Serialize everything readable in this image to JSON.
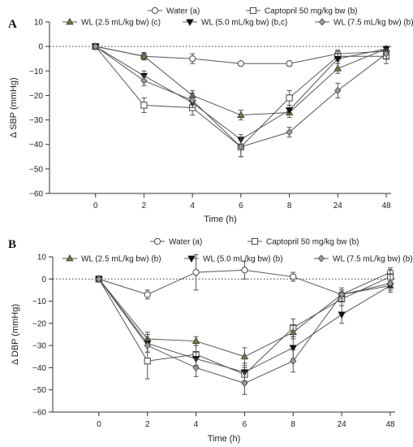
{
  "chart_data": [
    {
      "type": "line",
      "panel": "A",
      "ylabel": "Δ SBP (mmHg)",
      "xlabel": "Time (h)",
      "x": [
        "0",
        "2",
        "4",
        "6",
        "8",
        "24",
        "48"
      ],
      "ylim": [
        -60,
        10
      ],
      "yticks": [
        10,
        0,
        -10,
        -20,
        -30,
        -40,
        -50,
        -60
      ],
      "zero_line": "dotted",
      "legend_placement": "top",
      "series": [
        {
          "name": "Water (a)",
          "marker": "circle-open",
          "marker_color": "#ffffff",
          "values": [
            0,
            -4,
            -5,
            -7,
            -7,
            -3,
            -2
          ],
          "err": [
            0,
            1.5,
            2,
            0.5,
            1,
            1.5,
            1
          ]
        },
        {
          "name": "Captopril 50 mg/kg bw (b)",
          "marker": "square-open",
          "marker_color": "#ffffff",
          "values": [
            0,
            -24,
            -25,
            -41,
            -21,
            -4,
            -4
          ],
          "err": [
            0,
            3,
            3,
            4,
            3,
            2,
            3
          ]
        },
        {
          "name": "WL (2.5 mL/kg bw) (c)",
          "marker": "triangle-up",
          "marker_color": "#7a7a3a",
          "values": [
            0,
            -4,
            -20,
            -28,
            -27,
            -9,
            -1
          ],
          "err": [
            0,
            1.5,
            2,
            2,
            2,
            2,
            1
          ]
        },
        {
          "name": "WL (5.0 mL/kg bw) (b,c)",
          "marker": "triangle-down",
          "marker_color": "#111111",
          "values": [
            0,
            -12,
            -23,
            -38,
            -26,
            -5,
            -1
          ],
          "err": [
            0,
            2,
            2,
            2,
            2,
            2,
            1
          ]
        },
        {
          "name": "WL (7.5 mL/kg bw) (b)",
          "marker": "diamond",
          "marker_color": "#9a9a9a",
          "values": [
            0,
            -14,
            -22,
            -41,
            -35,
            -18,
            -3
          ],
          "err": [
            0,
            2,
            3,
            4,
            2,
            3,
            2
          ]
        }
      ]
    },
    {
      "type": "line",
      "panel": "B",
      "ylabel": "Δ DBP (mmHg)",
      "xlabel": "Time (h)",
      "x": [
        "0",
        "2",
        "4",
        "6",
        "8",
        "24",
        "48"
      ],
      "ylim": [
        -60,
        10
      ],
      "yticks": [
        10,
        0,
        -10,
        -20,
        -30,
        -40,
        -50,
        -60
      ],
      "zero_line": "dotted",
      "legend_placement": "top",
      "series": [
        {
          "name": "Water (a)",
          "marker": "circle-open",
          "marker_color": "#ffffff",
          "values": [
            0,
            -7,
            3,
            4,
            1,
            -7,
            3
          ],
          "err": [
            0,
            2,
            8,
            4,
            2,
            2,
            2
          ]
        },
        {
          "name": "Captopril 50 mg/kg bw (b)",
          "marker": "square-open",
          "marker_color": "#ffffff",
          "values": [
            0,
            -37,
            -34,
            -43,
            -22,
            -9,
            1
          ],
          "err": [
            0,
            8,
            5,
            3,
            4,
            3,
            3
          ]
        },
        {
          "name": "WL (2.5 mL/kg bw) (b)",
          "marker": "triangle-up",
          "marker_color": "#7a7a3a",
          "values": [
            0,
            -27,
            -28,
            -35,
            -24,
            -7,
            -3
          ],
          "err": [
            0,
            3,
            2,
            4,
            3,
            2,
            2
          ]
        },
        {
          "name": "WL (5.0 mL/kg bw) (b)",
          "marker": "triangle-down",
          "marker_color": "#111111",
          "values": [
            0,
            -29,
            -36,
            -42,
            -31,
            -16,
            -3
          ],
          "err": [
            0,
            4,
            3,
            4,
            5,
            4,
            2
          ]
        },
        {
          "name": "WL (7.5 mL/kg bw) (b)",
          "marker": "diamond",
          "marker_color": "#9a9a9a",
          "values": [
            0,
            -30,
            -40,
            -47,
            -37,
            -7,
            -2
          ],
          "err": [
            0,
            3,
            4,
            5,
            5,
            3,
            4
          ]
        }
      ]
    }
  ]
}
